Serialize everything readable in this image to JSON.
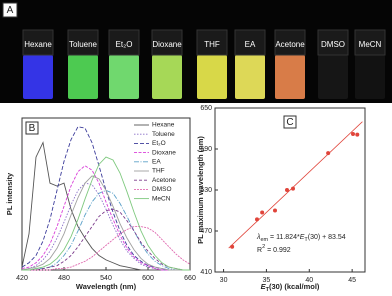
{
  "photo": {
    "label": "A",
    "solvents": [
      "Hexane",
      "Toluene",
      "Et₂O",
      "Dioxane",
      "THF",
      "EA",
      "Acetone",
      "DMSO",
      "MeCN"
    ]
  },
  "chart_data": [
    {
      "type": "line",
      "panel_label": "B",
      "ylabel": "PL intensity",
      "xlabel": "Wavelength (nm)",
      "xlim": [
        420,
        660
      ],
      "xticks": [
        420,
        480,
        540,
        600,
        660
      ],
      "ylim": [
        0,
        1.05
      ],
      "x": [
        420,
        430,
        440,
        450,
        460,
        470,
        480,
        490,
        500,
        510,
        520,
        530,
        540,
        550,
        560,
        570,
        580,
        590,
        600,
        610,
        620,
        630,
        640,
        650,
        660
      ],
      "series": [
        {
          "name": "Hexane",
          "color": "#555555",
          "values": [
            0.02,
            0.25,
            0.78,
            0.88,
            0.6,
            0.58,
            0.6,
            0.42,
            0.3,
            0.22,
            0.15,
            0.1,
            0.07,
            0.05,
            0.03,
            0.02,
            0.01,
            0,
            0,
            0,
            0,
            0,
            0,
            0,
            0
          ]
        },
        {
          "name": "Toluene",
          "color": "#8a6fc8",
          "values": [
            0,
            0.01,
            0.03,
            0.07,
            0.13,
            0.22,
            0.33,
            0.45,
            0.55,
            0.6,
            0.59,
            0.52,
            0.42,
            0.31,
            0.21,
            0.13,
            0.08,
            0.04,
            0.02,
            0.01,
            0,
            0,
            0,
            0,
            0
          ]
        },
        {
          "name": "Et₂O",
          "color": "#3b3b9a",
          "values": [
            0.02,
            0.05,
            0.1,
            0.2,
            0.35,
            0.55,
            0.75,
            0.9,
            0.99,
            0.98,
            0.88,
            0.72,
            0.55,
            0.4,
            0.27,
            0.17,
            0.1,
            0.06,
            0.03,
            0.02,
            0.01,
            0,
            0,
            0,
            0
          ]
        },
        {
          "name": "Dioxane",
          "color": "#d93fd9",
          "values": [
            0.01,
            0.02,
            0.05,
            0.1,
            0.18,
            0.3,
            0.44,
            0.58,
            0.68,
            0.72,
            0.69,
            0.6,
            0.47,
            0.35,
            0.24,
            0.15,
            0.09,
            0.05,
            0.03,
            0.01,
            0,
            0,
            0,
            0,
            0
          ]
        },
        {
          "name": "EA",
          "color": "#5aa0c8",
          "values": [
            0,
            0,
            0.01,
            0.01,
            0.02,
            0.05,
            0.1,
            0.17,
            0.27,
            0.38,
            0.47,
            0.53,
            0.55,
            0.53,
            0.46,
            0.37,
            0.27,
            0.18,
            0.11,
            0.06,
            0.03,
            0.01,
            0,
            0,
            0
          ]
        },
        {
          "name": "THF",
          "color": "#a0a0a0",
          "values": [
            0,
            0.01,
            0.02,
            0.04,
            0.08,
            0.15,
            0.25,
            0.38,
            0.5,
            0.6,
            0.65,
            0.63,
            0.55,
            0.44,
            0.32,
            0.22,
            0.14,
            0.08,
            0.04,
            0.02,
            0.01,
            0,
            0,
            0,
            0
          ]
        },
        {
          "name": "Acetone",
          "color": "#7a3a8a",
          "values": [
            0,
            0,
            0,
            0.01,
            0.02,
            0.03,
            0.06,
            0.1,
            0.16,
            0.23,
            0.3,
            0.37,
            0.41,
            0.42,
            0.4,
            0.34,
            0.27,
            0.19,
            0.13,
            0.08,
            0.04,
            0.02,
            0.01,
            0,
            0
          ]
        },
        {
          "name": "DMSO",
          "color": "#e06ab0",
          "values": [
            0,
            0,
            0,
            0,
            0,
            0.01,
            0.01,
            0.02,
            0.04,
            0.06,
            0.09,
            0.13,
            0.17,
            0.21,
            0.25,
            0.28,
            0.3,
            0.3,
            0.29,
            0.26,
            0.21,
            0.16,
            0.11,
            0.07,
            0.04
          ]
        },
        {
          "name": "MeCN",
          "color": "#7fc97f",
          "values": [
            0,
            0,
            0.01,
            0.02,
            0.04,
            0.08,
            0.14,
            0.23,
            0.35,
            0.49,
            0.62,
            0.73,
            0.78,
            0.76,
            0.67,
            0.54,
            0.4,
            0.27,
            0.17,
            0.1,
            0.05,
            0.02,
            0.01,
            0,
            0
          ]
        }
      ]
    },
    {
      "type": "scatter",
      "panel_label": "C",
      "ylabel": "PL maximum wavelength (nm)",
      "xlabel_parts": [
        "E",
        "T",
        "(30) (kcal/mol)"
      ],
      "xlim": [
        29,
        46.5
      ],
      "xticks": [
        30,
        35,
        40,
        45
      ],
      "ylim": [
        410,
        650
      ],
      "yticks": [
        410,
        470,
        530,
        590,
        650
      ],
      "color": "#e0443a",
      "x": [
        31.0,
        33.9,
        34.5,
        36.0,
        37.4,
        38.1,
        42.2,
        45.1,
        45.6
      ],
      "values": [
        447,
        487,
        497,
        500,
        530,
        532,
        584,
        612,
        611
      ],
      "fit_line": {
        "x": [
          30.6,
          46.2
        ],
        "y": [
          445,
          630
        ]
      },
      "equation_parts": [
        "λ",
        "em",
        " = 11.824*",
        "E",
        "T",
        "(30) + 83.54"
      ],
      "r2_parts": [
        "R",
        "2",
        " = 0.992"
      ]
    }
  ]
}
